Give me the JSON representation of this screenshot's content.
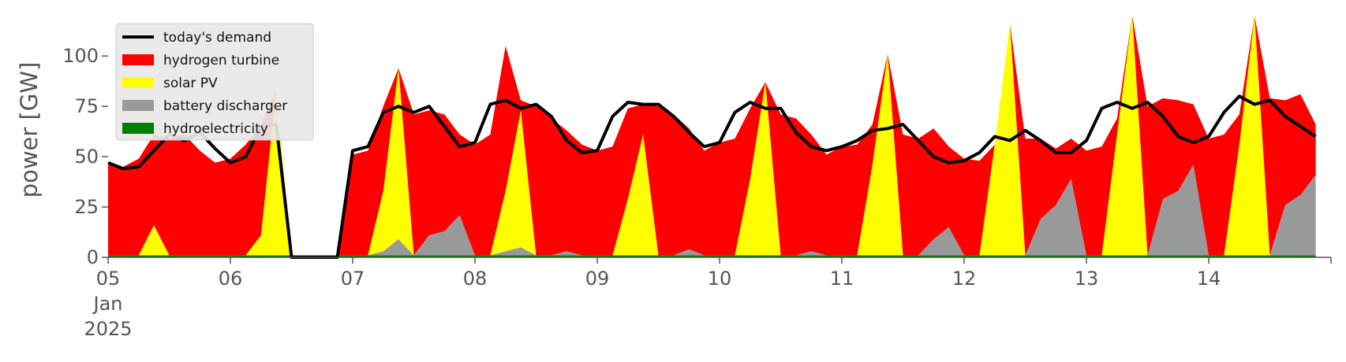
{
  "chart_data": {
    "type": "area",
    "title": "",
    "xlabel": "",
    "ylabel": "power [GW]",
    "ylim": [
      0,
      120
    ],
    "xlim_days": [
      "2025-01-05T00:00",
      "2025-01-14T23:00"
    ],
    "grid": false,
    "legend_position": "top-left",
    "stacked": true,
    "x_tick_labels": [
      {
        "day": "05",
        "sub": [
          "Jan",
          "2025"
        ]
      },
      {
        "day": "06"
      },
      {
        "day": "07"
      },
      {
        "day": "08"
      },
      {
        "day": "09"
      },
      {
        "day": "10"
      },
      {
        "day": "11"
      },
      {
        "day": "12"
      },
      {
        "day": "13"
      },
      {
        "day": "14"
      }
    ],
    "y_ticks": [
      0,
      25,
      50,
      75,
      100
    ],
    "x_resolution_hours": 3,
    "series": [
      {
        "name": "hydroelectricity",
        "color": "#008000",
        "kind": "area",
        "values": [
          1,
          1,
          1,
          1,
          1,
          1,
          1,
          1,
          1,
          1,
          1,
          1,
          1,
          1,
          1,
          1,
          1,
          1,
          1,
          1,
          1,
          1,
          1,
          1,
          1,
          1,
          1,
          1,
          1,
          1,
          1,
          1,
          1,
          1,
          1,
          1,
          1,
          1,
          1,
          1,
          1,
          1,
          1,
          1,
          1,
          1,
          1,
          1,
          1,
          1,
          1,
          1,
          1,
          1,
          1,
          1,
          1,
          1,
          1,
          1,
          1,
          1,
          1,
          1,
          1,
          1,
          1,
          1,
          1,
          1,
          1,
          1,
          1,
          1,
          1,
          1,
          1,
          1,
          1,
          1
        ]
      },
      {
        "name": "battery discharger",
        "color": "#999999",
        "kind": "area",
        "values": [
          0,
          0,
          0,
          0,
          0,
          0,
          0,
          0,
          0,
          0,
          0,
          0,
          0,
          0,
          0,
          0,
          0,
          0,
          2,
          8,
          0,
          10,
          12,
          20,
          0,
          0,
          2,
          4,
          0,
          0,
          2,
          0,
          0,
          0,
          0,
          0,
          0,
          0,
          3,
          0,
          0,
          0,
          0,
          0,
          0,
          0,
          2,
          0,
          0,
          0,
          0,
          0,
          0,
          0,
          8,
          14,
          0,
          0,
          0,
          0,
          0,
          18,
          25,
          38,
          0,
          0,
          0,
          0,
          0,
          28,
          32,
          45,
          0,
          0,
          0,
          0,
          0,
          25,
          30,
          40
        ]
      },
      {
        "name": "solar PV",
        "color": "#ffff00",
        "kind": "area",
        "values": [
          0,
          0,
          0,
          15,
          0,
          0,
          0,
          0,
          0,
          0,
          10,
          82,
          0,
          0,
          0,
          0,
          0,
          0,
          30,
          85,
          0,
          0,
          0,
          0,
          0,
          0,
          30,
          68,
          0,
          0,
          0,
          0,
          0,
          0,
          28,
          60,
          0,
          0,
          0,
          0,
          0,
          0,
          38,
          86,
          0,
          0,
          0,
          0,
          0,
          0,
          45,
          100,
          0,
          0,
          0,
          0,
          0,
          0,
          55,
          115,
          0,
          0,
          0,
          0,
          0,
          0,
          60,
          125,
          0,
          0,
          0,
          0,
          0,
          0,
          55,
          125,
          0,
          0,
          0,
          0
        ]
      },
      {
        "name": "hydrogen turbine",
        "color": "#ff0000",
        "kind": "area",
        "values": [
          45,
          44,
          48,
          45,
          58,
          60,
          52,
          46,
          48,
          55,
          55,
          0,
          0,
          0,
          0,
          0,
          50,
          52,
          42,
          0,
          70,
          62,
          58,
          40,
          55,
          60,
          72,
          5,
          74,
          68,
          60,
          55,
          52,
          54,
          45,
          15,
          74,
          70,
          60,
          52,
          56,
          58,
          35,
          0,
          70,
          68,
          58,
          50,
          54,
          55,
          20,
          0,
          60,
          58,
          55,
          40,
          48,
          47,
          0,
          0,
          58,
          40,
          28,
          20,
          52,
          54,
          8,
          0,
          74,
          50,
          45,
          30,
          58,
          60,
          15,
          0,
          78,
          52,
          50,
          25
        ]
      },
      {
        "name": "today's demand",
        "color": "#000000",
        "kind": "line",
        "values": [
          47,
          44,
          45,
          53,
          61,
          58,
          62,
          54,
          47,
          50,
          65,
          66,
          0,
          0,
          0,
          0,
          53,
          55,
          72,
          75,
          72,
          75,
          65,
          55,
          57,
          76,
          78,
          74,
          76,
          70,
          58,
          52,
          53,
          70,
          77,
          76,
          76,
          70,
          62,
          55,
          57,
          72,
          77,
          74,
          74,
          62,
          55,
          53,
          55,
          58,
          63,
          64,
          66,
          58,
          50,
          47,
          48,
          52,
          60,
          58,
          63,
          58,
          52,
          52,
          58,
          74,
          77,
          74,
          77,
          70,
          60,
          57,
          60,
          72,
          80,
          76,
          78,
          70,
          65,
          60
        ]
      }
    ]
  }
}
